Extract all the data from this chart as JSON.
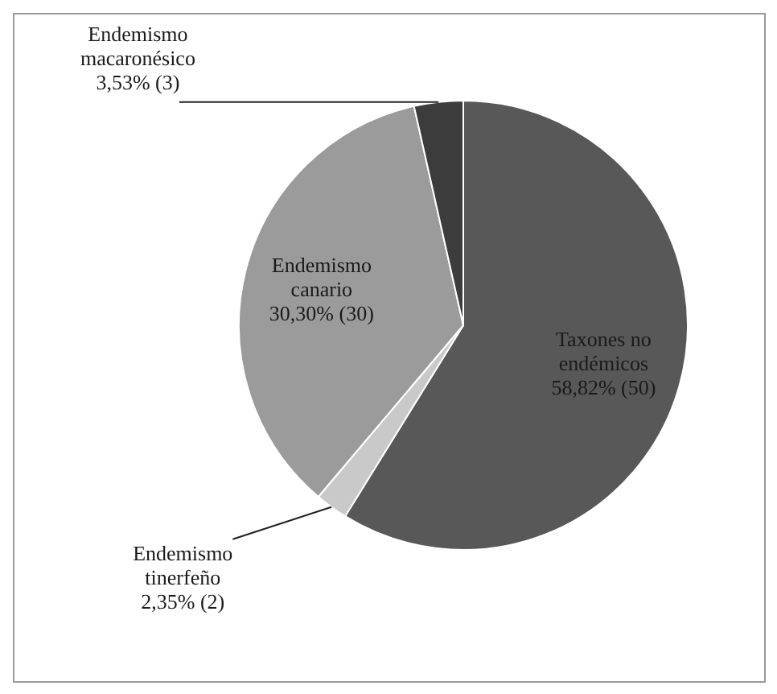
{
  "chart_data": {
    "type": "pie",
    "categories": [
      "Taxones no endémicos",
      "Endemismo tinerfeño",
      "Endemismo canario",
      "Endemismo macaronésico"
    ],
    "values": [
      50,
      2,
      30,
      3
    ],
    "value_labels": [
      "58,82% (50)",
      "2,35% (2)",
      "30,30% (30)",
      "3,53% (3)"
    ],
    "colors": [
      "#585858",
      "#c9c9c9",
      "#9b9b9b",
      "#3c3c3c"
    ],
    "legend": false
  }
}
